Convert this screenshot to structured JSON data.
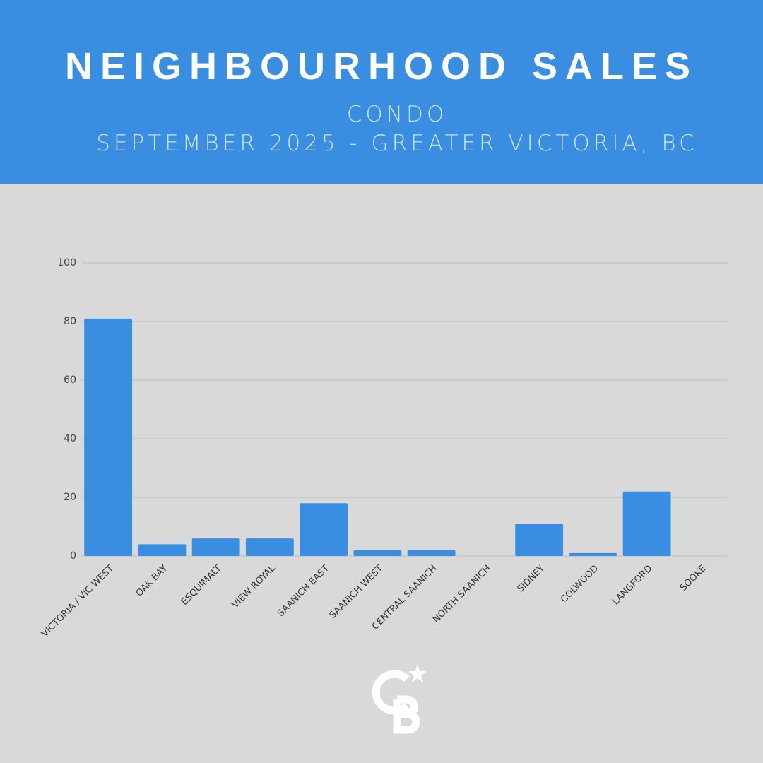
{
  "chart_data": {
    "type": "bar",
    "title": "NEIGHBOURHOOD SALES",
    "subtitle": [
      "CONDO",
      "SEPTEMBER 2025 - GREATER VICTORIA, BC"
    ],
    "categories": [
      "VICTORIA / VIC WEST",
      "OAK BAY",
      "ESQUIMALT",
      "VIEW ROYAL",
      "SAANICH EAST",
      "SAANICH WEST",
      "CENTRAL SAANICH",
      "NORTH SAANICH",
      "SIDNEY",
      "COLWOOD",
      "LANGFORD",
      "SOOKE"
    ],
    "values": [
      81,
      4,
      6,
      6,
      18,
      2,
      2,
      0,
      11,
      1,
      22,
      0
    ],
    "color": "#3a8ee2",
    "ylim": [
      0,
      100
    ],
    "yticks": [
      0,
      20,
      40,
      60,
      80,
      100
    ],
    "grid": true
  }
}
